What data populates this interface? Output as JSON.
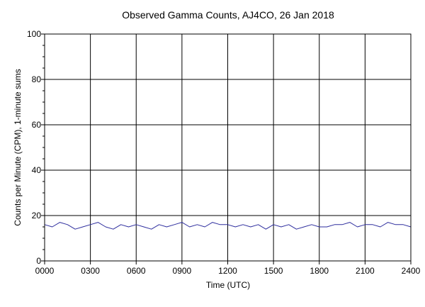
{
  "chart_data": {
    "type": "line",
    "title": "Observed Gamma Counts, AJ4CO, 26 Jan 2018",
    "xlabel": "Time (UTC)",
    "ylabel": "Counts per Minute (CPM), 1-minute sums",
    "xlim": [
      0,
      1440
    ],
    "ylim": [
      0,
      100
    ],
    "x_ticks": [
      {
        "value": 0,
        "label": "0000"
      },
      {
        "value": 180,
        "label": "0300"
      },
      {
        "value": 360,
        "label": "0600"
      },
      {
        "value": 540,
        "label": "0900"
      },
      {
        "value": 720,
        "label": "1200"
      },
      {
        "value": 900,
        "label": "1500"
      },
      {
        "value": 1080,
        "label": "1800"
      },
      {
        "value": 1260,
        "label": "2100"
      },
      {
        "value": 1440,
        "label": "2400"
      }
    ],
    "y_ticks": [
      {
        "value": 0,
        "label": "0"
      },
      {
        "value": 20,
        "label": "20"
      },
      {
        "value": 40,
        "label": "40"
      },
      {
        "value": 60,
        "label": "60"
      },
      {
        "value": 80,
        "label": "80"
      },
      {
        "value": 100,
        "label": "100"
      }
    ],
    "y_minor_step": 5,
    "grid": true,
    "reference_line": {
      "y": 20
    },
    "series": [
      {
        "x": [
          0,
          30,
          60,
          90,
          120,
          150,
          180,
          210,
          240,
          270,
          300,
          330,
          360,
          390,
          420,
          450,
          480,
          510,
          540,
          570,
          600,
          630,
          660,
          690,
          720,
          750,
          780,
          810,
          840,
          870,
          900,
          930,
          960,
          990,
          1020,
          1050,
          1080,
          1110,
          1140,
          1170,
          1200,
          1230,
          1260,
          1290,
          1320,
          1350,
          1380,
          1410,
          1440
        ],
        "y": [
          16,
          15,
          17,
          16,
          14,
          15,
          16,
          17,
          15,
          14,
          16,
          15,
          16,
          15,
          14,
          16,
          15,
          16,
          17,
          15,
          16,
          15,
          17,
          16,
          16,
          15,
          16,
          15,
          16,
          14,
          16,
          15,
          16,
          14,
          15,
          16,
          15,
          15,
          16,
          16,
          17,
          15,
          16,
          16,
          15,
          17,
          16,
          16,
          15
        ],
        "color": "#2E2E9E",
        "line_width": 1
      }
    ]
  }
}
